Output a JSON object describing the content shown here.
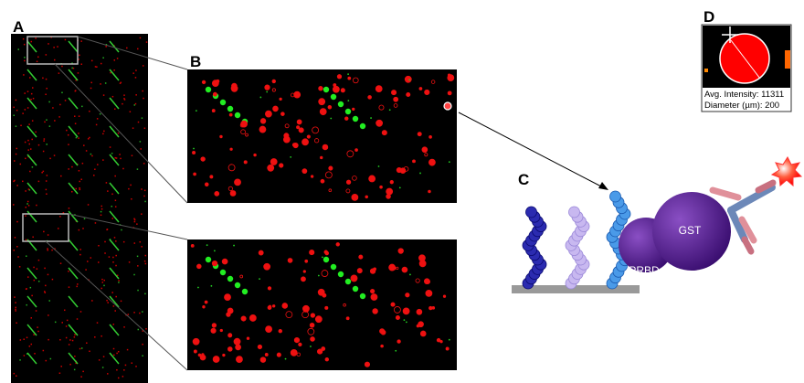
{
  "panels": {
    "a": {
      "label": "A"
    },
    "b": {
      "label": "B"
    },
    "c": {
      "label": "C",
      "prbd": "PRBD",
      "gst": "GST"
    },
    "d": {
      "label": "D",
      "intensity": "Avg. Intensity: 11311",
      "diameter": "Diameter (µm): 200"
    }
  }
}
